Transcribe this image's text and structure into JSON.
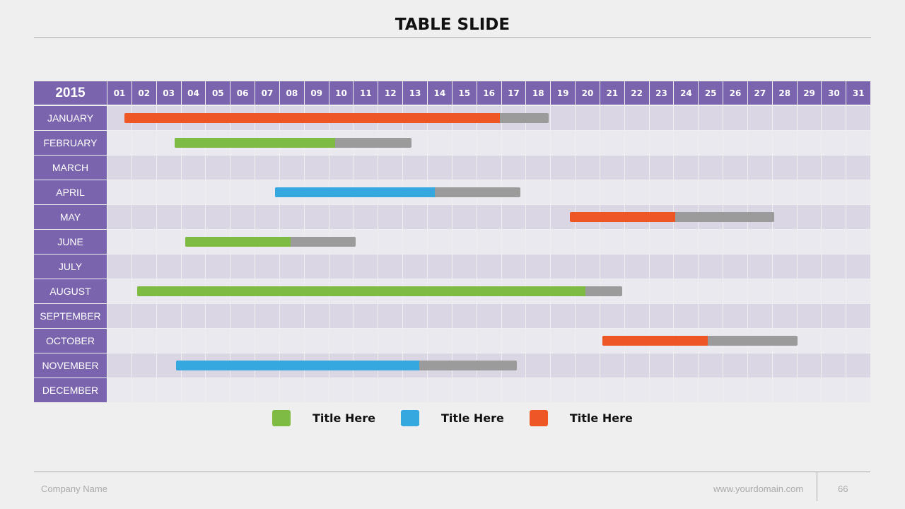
{
  "title": "TABLE SLIDE",
  "year": "2015",
  "days": [
    "01",
    "02",
    "03",
    "04",
    "05",
    "06",
    "07",
    "08",
    "09",
    "10",
    "11",
    "12",
    "13",
    "14",
    "15",
    "16",
    "17",
    "18",
    "19",
    "20",
    "21",
    "22",
    "23",
    "24",
    "25",
    "26",
    "27",
    "28",
    "29",
    "30",
    "31"
  ],
  "colors": {
    "purple": "#7a64ae",
    "orange": "#ee5626",
    "green": "#7dbb42",
    "blue": "#35a8e0",
    "gray": "#9b9b9b"
  },
  "months": [
    {
      "name": "JANUARY",
      "bar": {
        "color": "orange",
        "start": 1.69,
        "progress_end": 16.93,
        "end": 18.91
      }
    },
    {
      "name": "FEBRUARY",
      "bar": {
        "color": "green",
        "start": 3.73,
        "progress_end": 10.24,
        "end": 13.34
      }
    },
    {
      "name": "MARCH"
    },
    {
      "name": "APRIL",
      "bar": {
        "color": "blue",
        "start": 7.8,
        "progress_end": 14.29,
        "end": 17.76
      }
    },
    {
      "name": "MAY",
      "bar": {
        "color": "orange",
        "start": 19.77,
        "progress_end": 24.05,
        "end": 28.07
      }
    },
    {
      "name": "JUNE",
      "bar": {
        "color": "green",
        "start": 4.16,
        "progress_end": 8.43,
        "end": 11.07
      }
    },
    {
      "name": "JULY"
    },
    {
      "name": "AUGUST",
      "bar": {
        "color": "green",
        "start": 2.21,
        "progress_end": 20.4,
        "end": 21.9
      }
    },
    {
      "name": "SEPTEMBER"
    },
    {
      "name": "OCTOBER",
      "bar": {
        "color": "orange",
        "start": 21.09,
        "progress_end": 25.37,
        "end": 29.01
      }
    },
    {
      "name": "NOVEMBER",
      "bar": {
        "color": "blue",
        "start": 3.78,
        "progress_end": 13.66,
        "end": 17.62
      }
    },
    {
      "name": "DECEMBER"
    }
  ],
  "legend": [
    {
      "color": "green",
      "label": "Title Here"
    },
    {
      "color": "blue",
      "label": "Title Here"
    },
    {
      "color": "orange",
      "label": "Title Here"
    }
  ],
  "footer": {
    "company": "Company Name",
    "website": "www.yourdomain.com",
    "page": "66"
  }
}
